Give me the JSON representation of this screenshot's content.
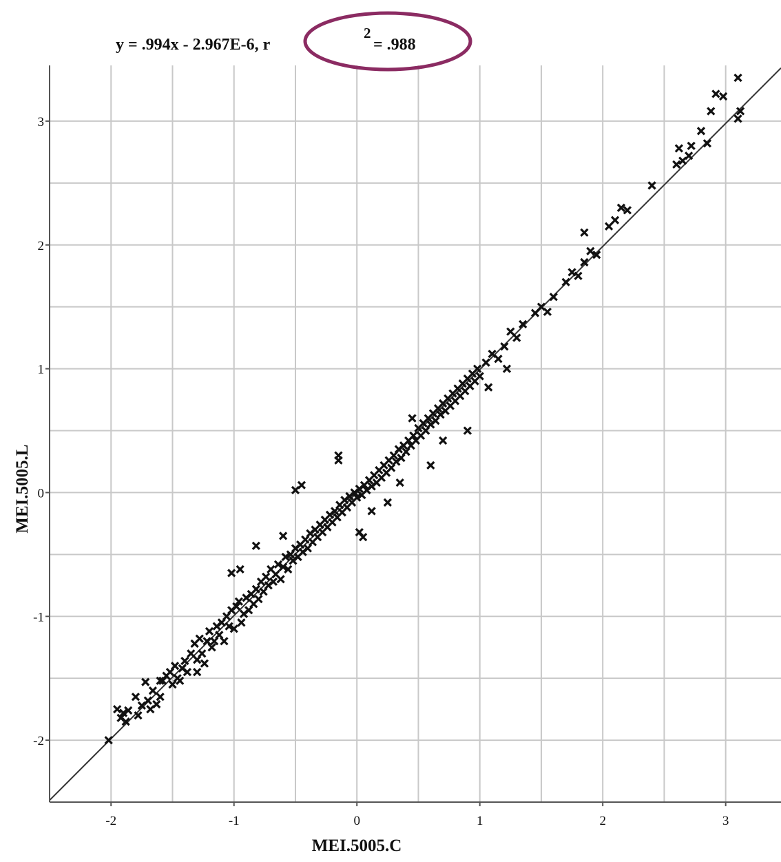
{
  "chart_data": {
    "type": "scatter",
    "title": "",
    "equation": {
      "part1": "y = .994x - 2.967E-6, r",
      "exponent": "2",
      "part2": " = .988"
    },
    "xlabel": "MEI.5005.C",
    "ylabel": "MEI.5005.L",
    "xlim": [
      -2.5,
      3.45
    ],
    "ylim": [
      -2.5,
      3.45
    ],
    "xticks": [
      -2,
      -1,
      0,
      1,
      2,
      3
    ],
    "yticks": [
      -2,
      -1,
      0,
      1,
      2,
      3
    ],
    "grid": true,
    "grid_step": 0.5,
    "marker": "x",
    "marker_color": "#111111",
    "fit_line": {
      "slope": 0.994,
      "intercept": -2.967e-06,
      "color": "#333333"
    },
    "highlight": {
      "target": "r2 value",
      "shape": "ellipse",
      "color": "#8b2b62"
    },
    "series": [
      {
        "points": [
          [
            -2.02,
            -2.0
          ],
          [
            -1.95,
            -1.75
          ],
          [
            -1.9,
            -1.78
          ],
          [
            -1.88,
            -1.85
          ],
          [
            -1.86,
            -1.76
          ],
          [
            -1.92,
            -1.82
          ],
          [
            -1.8,
            -1.65
          ],
          [
            -1.78,
            -1.8
          ],
          [
            -1.75,
            -1.72
          ],
          [
            -1.72,
            -1.53
          ],
          [
            -1.7,
            -1.68
          ],
          [
            -1.68,
            -1.75
          ],
          [
            -1.66,
            -1.6
          ],
          [
            -1.63,
            -1.71
          ],
          [
            -1.6,
            -1.65
          ],
          [
            -1.58,
            -1.52
          ],
          [
            -1.55,
            -1.48
          ],
          [
            -1.52,
            -1.45
          ],
          [
            -1.5,
            -1.55
          ],
          [
            -1.48,
            -1.4
          ],
          [
            -1.46,
            -1.5
          ],
          [
            -1.44,
            -1.52
          ],
          [
            -1.42,
            -1.42
          ],
          [
            -1.4,
            -1.36
          ],
          [
            -1.38,
            -1.45
          ],
          [
            -1.35,
            -1.3
          ],
          [
            -1.32,
            -1.22
          ],
          [
            -1.3,
            -1.35
          ],
          [
            -1.28,
            -1.18
          ],
          [
            -1.26,
            -1.3
          ],
          [
            -1.24,
            -1.38
          ],
          [
            -1.22,
            -1.2
          ],
          [
            -1.2,
            -1.12
          ],
          [
            -1.18,
            -1.25
          ],
          [
            -1.16,
            -1.2
          ],
          [
            -1.14,
            -1.08
          ],
          [
            -1.12,
            -1.15
          ],
          [
            -1.1,
            -1.05
          ],
          [
            -1.08,
            -1.2
          ],
          [
            -1.06,
            -1.0
          ],
          [
            -1.04,
            -1.08
          ],
          [
            -1.02,
            -0.95
          ],
          [
            -1.0,
            -1.1
          ],
          [
            -0.98,
            -0.92
          ],
          [
            -0.96,
            -0.88
          ],
          [
            -0.94,
            -1.05
          ],
          [
            -0.92,
            -0.98
          ],
          [
            -0.9,
            -0.85
          ],
          [
            -0.88,
            -0.95
          ],
          [
            -0.86,
            -0.82
          ],
          [
            -0.84,
            -0.9
          ],
          [
            -0.82,
            -0.78
          ],
          [
            -0.8,
            -0.86
          ],
          [
            -0.78,
            -0.72
          ],
          [
            -0.76,
            -0.8
          ],
          [
            -0.74,
            -0.68
          ],
          [
            -0.72,
            -0.75
          ],
          [
            -0.7,
            -0.62
          ],
          [
            -0.68,
            -0.72
          ],
          [
            -0.66,
            -0.66
          ],
          [
            -0.64,
            -0.58
          ],
          [
            -0.62,
            -0.7
          ],
          [
            -0.6,
            -0.6
          ],
          [
            -0.58,
            -0.52
          ],
          [
            -0.56,
            -0.62
          ],
          [
            -0.54,
            -0.5
          ],
          [
            -0.52,
            -0.55
          ],
          [
            -0.5,
            -0.45
          ],
          [
            -0.48,
            -0.52
          ],
          [
            -0.46,
            -0.42
          ],
          [
            -0.44,
            -0.48
          ],
          [
            -0.42,
            -0.38
          ],
          [
            -0.4,
            -0.45
          ],
          [
            -0.38,
            -0.33
          ],
          [
            -0.36,
            -0.4
          ],
          [
            -0.34,
            -0.3
          ],
          [
            -0.32,
            -0.36
          ],
          [
            -0.3,
            -0.26
          ],
          [
            -0.28,
            -0.32
          ],
          [
            -0.26,
            -0.22
          ],
          [
            -0.24,
            -0.28
          ],
          [
            -0.22,
            -0.18
          ],
          [
            -0.2,
            -0.24
          ],
          [
            -0.18,
            -0.15
          ],
          [
            -0.16,
            -0.2
          ],
          [
            -0.14,
            -0.1
          ],
          [
            -0.12,
            -0.16
          ],
          [
            -0.1,
            -0.06
          ],
          [
            -0.08,
            -0.12
          ],
          [
            -0.06,
            -0.03
          ],
          [
            -0.04,
            -0.08
          ],
          [
            -0.02,
            0.0
          ],
          [
            0.0,
            -0.04
          ],
          [
            0.02,
            0.03
          ],
          [
            0.04,
            -0.02
          ],
          [
            0.06,
            0.06
          ],
          [
            0.08,
            0.02
          ],
          [
            0.1,
            0.1
          ],
          [
            0.12,
            0.05
          ],
          [
            0.14,
            0.14
          ],
          [
            0.16,
            0.08
          ],
          [
            0.18,
            0.18
          ],
          [
            0.2,
            0.12
          ],
          [
            0.22,
            0.22
          ],
          [
            0.24,
            0.16
          ],
          [
            0.26,
            0.26
          ],
          [
            0.28,
            0.2
          ],
          [
            0.3,
            0.3
          ],
          [
            0.32,
            0.25
          ],
          [
            0.34,
            0.35
          ],
          [
            0.36,
            0.28
          ],
          [
            0.38,
            0.38
          ],
          [
            0.4,
            0.33
          ],
          [
            0.42,
            0.42
          ],
          [
            0.44,
            0.38
          ],
          [
            0.46,
            0.46
          ],
          [
            0.48,
            0.42
          ],
          [
            0.5,
            0.52
          ],
          [
            0.52,
            0.46
          ],
          [
            0.54,
            0.56
          ],
          [
            0.56,
            0.5
          ],
          [
            0.58,
            0.6
          ],
          [
            0.6,
            0.55
          ],
          [
            0.62,
            0.64
          ],
          [
            0.64,
            0.58
          ],
          [
            0.66,
            0.68
          ],
          [
            0.68,
            0.63
          ],
          [
            0.7,
            0.72
          ],
          [
            0.72,
            0.66
          ],
          [
            0.74,
            0.76
          ],
          [
            0.76,
            0.7
          ],
          [
            0.78,
            0.8
          ],
          [
            0.8,
            0.74
          ],
          [
            0.82,
            0.84
          ],
          [
            0.84,
            0.78
          ],
          [
            0.86,
            0.88
          ],
          [
            0.88,
            0.82
          ],
          [
            0.9,
            0.92
          ],
          [
            0.92,
            0.86
          ],
          [
            0.94,
            0.96
          ],
          [
            0.96,
            0.9
          ],
          [
            0.98,
            1.0
          ],
          [
            1.0,
            0.94
          ],
          [
            1.05,
            1.05
          ],
          [
            1.1,
            1.12
          ],
          [
            1.15,
            1.08
          ],
          [
            1.2,
            1.18
          ],
          [
            1.25,
            1.3
          ],
          [
            1.3,
            1.25
          ],
          [
            1.35,
            1.36
          ],
          [
            1.45,
            1.45
          ],
          [
            1.5,
            1.5
          ],
          [
            1.55,
            1.46
          ],
          [
            1.6,
            1.58
          ],
          [
            1.7,
            1.7
          ],
          [
            1.75,
            1.78
          ],
          [
            1.8,
            1.75
          ],
          [
            1.85,
            1.86
          ],
          [
            1.9,
            1.95
          ],
          [
            1.95,
            1.92
          ],
          [
            2.05,
            2.15
          ],
          [
            2.1,
            2.2
          ],
          [
            2.15,
            2.3
          ],
          [
            2.2,
            2.28
          ],
          [
            2.4,
            2.48
          ],
          [
            2.6,
            2.65
          ],
          [
            2.62,
            2.78
          ],
          [
            2.65,
            2.68
          ],
          [
            2.7,
            2.72
          ],
          [
            2.72,
            2.8
          ],
          [
            2.8,
            2.92
          ],
          [
            2.85,
            2.82
          ],
          [
            2.88,
            3.08
          ],
          [
            2.92,
            3.22
          ],
          [
            2.98,
            3.2
          ],
          [
            3.1,
            3.02
          ],
          [
            3.12,
            3.08
          ],
          [
            3.1,
            3.35
          ],
          [
            -0.5,
            0.02
          ],
          [
            -0.45,
            0.06
          ],
          [
            -0.15,
            0.3
          ],
          [
            -0.15,
            0.26
          ],
          [
            -0.82,
            -0.43
          ],
          [
            -1.02,
            -0.65
          ],
          [
            -0.95,
            -0.62
          ],
          [
            0.02,
            -0.32
          ],
          [
            0.05,
            -0.36
          ],
          [
            0.6,
            0.22
          ],
          [
            0.25,
            -0.08
          ],
          [
            0.9,
            0.5
          ],
          [
            1.07,
            0.85
          ],
          [
            1.85,
            2.1
          ],
          [
            0.7,
            0.42
          ],
          [
            0.12,
            -0.15
          ],
          [
            -0.6,
            -0.35
          ],
          [
            0.45,
            0.6
          ],
          [
            -1.3,
            -1.45
          ],
          [
            -1.6,
            -1.52
          ],
          [
            1.22,
            1.0
          ],
          [
            0.35,
            0.08
          ]
        ]
      }
    ]
  }
}
